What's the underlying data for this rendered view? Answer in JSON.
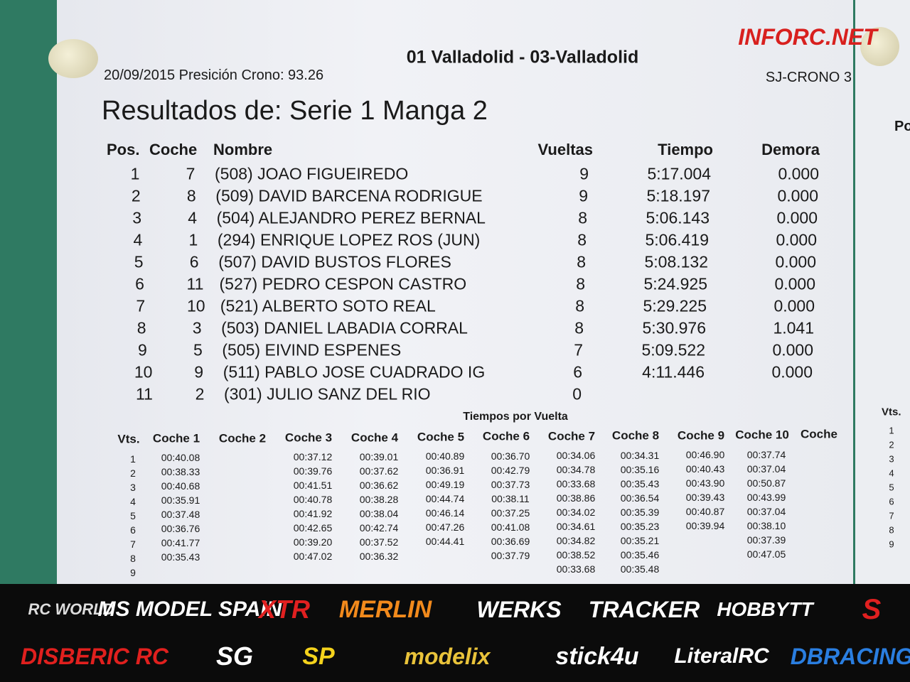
{
  "watermark": "INFORC.NET",
  "header": {
    "event": "01 Valladolid - 03-Valladolid",
    "date_line": "20/09/2015 Presición Crono: 93.26",
    "system": "SJ-CRONO 3",
    "title": "Resultados de: Serie 1 Manga 2"
  },
  "results": {
    "columns": [
      "Pos.",
      "Coche",
      "Nombre",
      "Vueltas",
      "Tiempo",
      "Demora"
    ],
    "rows": [
      [
        "1",
        "7",
        "(508) JOAO FIGUEIREDO",
        "9",
        "5:17.004",
        "0.000"
      ],
      [
        "2",
        "8",
        "(509) DAVID BARCENA RODRIGUE",
        "9",
        "5:18.197",
        "0.000"
      ],
      [
        "3",
        "4",
        "(504) ALEJANDRO PEREZ BERNAL",
        "8",
        "5:06.143",
        "0.000"
      ],
      [
        "4",
        "1",
        "(294) ENRIQUE LOPEZ ROS (JUN)",
        "8",
        "5:06.419",
        "0.000"
      ],
      [
        "5",
        "6",
        "(507) DAVID BUSTOS FLORES",
        "8",
        "5:08.132",
        "0.000"
      ],
      [
        "6",
        "11",
        "(527) PEDRO CESPON CASTRO",
        "8",
        "5:24.925",
        "0.000"
      ],
      [
        "7",
        "10",
        "(521) ALBERTO SOTO REAL",
        "8",
        "5:29.225",
        "0.000"
      ],
      [
        "8",
        "3",
        "(503) DANIEL LABADIA CORRAL",
        "8",
        "5:30.976",
        "1.041"
      ],
      [
        "9",
        "5",
        "(505) EIVIND ESPENES",
        "7",
        "5:09.522",
        "0.000"
      ],
      [
        "10",
        "9",
        "(511) PABLO JOSE CUADRADO IG",
        "6",
        "4:11.446",
        "0.000"
      ],
      [
        "11",
        "2",
        "(301) JULIO SANZ DEL RIO",
        "0"
      ]
    ]
  },
  "lap_table": {
    "title": "Tiempos por Vuelta",
    "columns": [
      "Vts.",
      "Coche 1",
      "Coche 2",
      "Coche 3",
      "Coche 4",
      "Coche 5",
      "Coche 6",
      "Coche 7",
      "Coche 8",
      "Coche 9",
      "Coche 10",
      "Coche"
    ],
    "laps": [
      "1",
      "2",
      "3",
      "4",
      "5",
      "6",
      "7",
      "8",
      "9"
    ],
    "cars": [
      [
        "00:40.08",
        "00:38.33",
        "00:40.68",
        "00:35.91",
        "00:37.48",
        "00:36.76",
        "00:41.77",
        "00:35.43"
      ],
      [],
      [
        "00:37.12",
        "00:39.76",
        "00:41.51",
        "00:40.78",
        "00:41.92",
        "00:42.65",
        "00:39.20",
        "00:47.02"
      ],
      [
        "00:39.01",
        "00:37.62",
        "00:36.62",
        "00:38.28",
        "00:38.04",
        "00:42.74",
        "00:37.52",
        "00:36.32"
      ],
      [
        "00:40.89",
        "00:36.91",
        "00:49.19",
        "00:44.74",
        "00:46.14",
        "00:47.26",
        "00:44.41"
      ],
      [
        "00:36.70",
        "00:42.79",
        "00:37.73",
        "00:38.11",
        "00:37.25",
        "00:41.08",
        "00:36.69",
        "00:37.79"
      ],
      [
        "00:34.06",
        "00:34.78",
        "00:33.68",
        "00:38.86",
        "00:34.02",
        "00:34.61",
        "00:34.82",
        "00:38.52",
        "00:33.68"
      ],
      [
        "00:34.31",
        "00:35.16",
        "00:35.43",
        "00:36.54",
        "00:35.39",
        "00:35.23",
        "00:35.21",
        "00:35.46",
        "00:35.48"
      ],
      [
        "00:46.90",
        "00:40.43",
        "00:43.90",
        "00:39.43",
        "00:40.87",
        "00:39.94"
      ],
      [
        "00:37.74",
        "00:37.04",
        "00:50.87",
        "00:43.99",
        "00:37.04",
        "00:38.10",
        "00:37.39",
        "00:47.05"
      ]
    ]
  },
  "second_sheet": {
    "header": "Po",
    "lap_header": "Vts.",
    "laps": [
      "1",
      "2",
      "3",
      "4",
      "5",
      "6",
      "7",
      "8",
      "9"
    ]
  },
  "sponsors": {
    "row1": [
      "RC WORLD",
      "MS MODEL SPAIN",
      "XTR",
      "MERLIN",
      "WERKS",
      "TRACKER",
      "HOBBYTT",
      "S"
    ],
    "row2": [
      "DISBERIC RC",
      "SG",
      "SP",
      "modelix",
      "stick4u",
      "LiteralRC",
      "DBRACING"
    ]
  }
}
